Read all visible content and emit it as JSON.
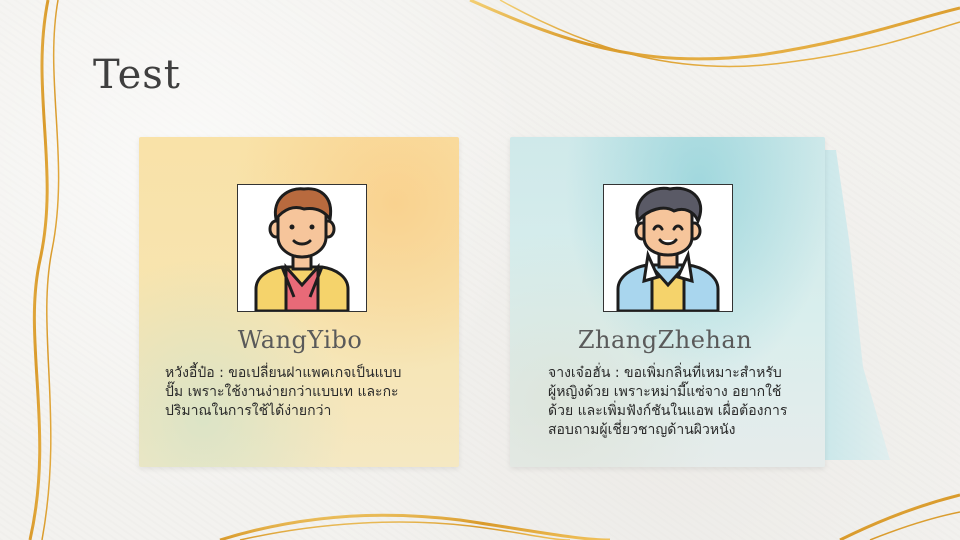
{
  "slide": {
    "title": "Test"
  },
  "cards": [
    {
      "name": "WangYibo",
      "avatar_icon": "man-avatar-icon",
      "description": "หวังอี้ป๋อ : ขอเปลี่ยนฝาแพคเกจเป็นแบบ\nปั๊ม เพราะใช้งานง่ายกว่าแบบเท และกะ\nปริมาณในการใช้ได้ง่ายกว่า"
    },
    {
      "name": "ZhangZhehan",
      "avatar_icon": "man-avatar-icon",
      "description": "จางเจ๋อฮั่น : ขอเพิ่มกลิ่นที่เหมาะสำหรับ\nผู้หญิงด้วย เพราะหม่ามี๊แซ่จาง อยากใช้\nด้วย และเพิ่มฟังก์ชันในแอพ เผื่อต้องการ\nสอบถามผู้เชี่ยวชาญด้านผิวหนัง"
    }
  ],
  "colors": {
    "gold": "#e0a83a",
    "card_left": "#f7e4b0",
    "card_right": "#d3ecec"
  }
}
